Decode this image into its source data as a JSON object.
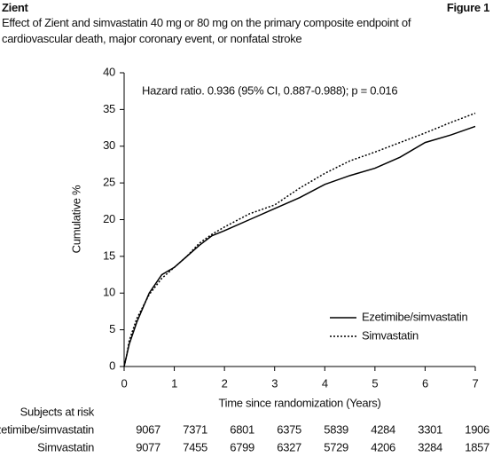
{
  "chart_data": {
    "type": "line",
    "brand": "Zient",
    "figure_label": "Figure 1",
    "title": "Effect of Zient and simvastatin 40 mg or 80 mg on the primary composite endpoint of cardiovascular death, major coronary event, or nonfatal stroke",
    "annotation": "Hazard ratio. 0.936 (95% CI, 0.887-0.988); p = 0.016",
    "x_label": "Time since randomization (Years)",
    "y_label": "Cumulative %",
    "x": [
      0,
      0.05,
      0.1,
      0.25,
      0.5,
      0.75,
      1,
      1.25,
      1.5,
      1.75,
      2,
      2.5,
      3,
      3.5,
      4,
      4.5,
      5,
      5.5,
      6,
      6.5,
      7
    ],
    "series": [
      {
        "name": "Ezetimibe/simvastatin",
        "color": "#000000",
        "dash": "solid",
        "values": [
          0,
          1.5,
          3,
          6,
          10,
          12.5,
          13.5,
          15,
          16.5,
          17.8,
          18.5,
          20,
          21.5,
          23,
          24.8,
          26,
          27,
          28.5,
          30.5,
          31.5,
          32.7
        ]
      },
      {
        "name": "Simvastatin",
        "color": "#000000",
        "dash": "dotted",
        "values": [
          0,
          1.5,
          3.5,
          6.5,
          9.8,
          12,
          13.5,
          15,
          16.8,
          18,
          19,
          20.8,
          22,
          24.3,
          26.3,
          28,
          29.2,
          30.5,
          31.8,
          33.2,
          34.5
        ]
      }
    ],
    "xlim": [
      0,
      7
    ],
    "xticks": [
      0,
      1,
      2,
      3,
      4,
      5,
      6,
      7
    ],
    "ylim": [
      0,
      40
    ],
    "yticks": [
      0,
      5,
      10,
      15,
      20,
      25,
      30,
      35,
      40
    ],
    "grid": false,
    "legend": "lower right",
    "risk_table": {
      "label": "Subjects at risk",
      "rows": [
        {
          "name": "Ezetimibe/simvastatin",
          "values": [
            9067,
            7371,
            6801,
            6375,
            5839,
            4284,
            3301,
            1906
          ]
        },
        {
          "name": "Simvastatin",
          "values": [
            9077,
            7455,
            6799,
            6327,
            5729,
            4206,
            3284,
            1857
          ]
        }
      ]
    }
  }
}
